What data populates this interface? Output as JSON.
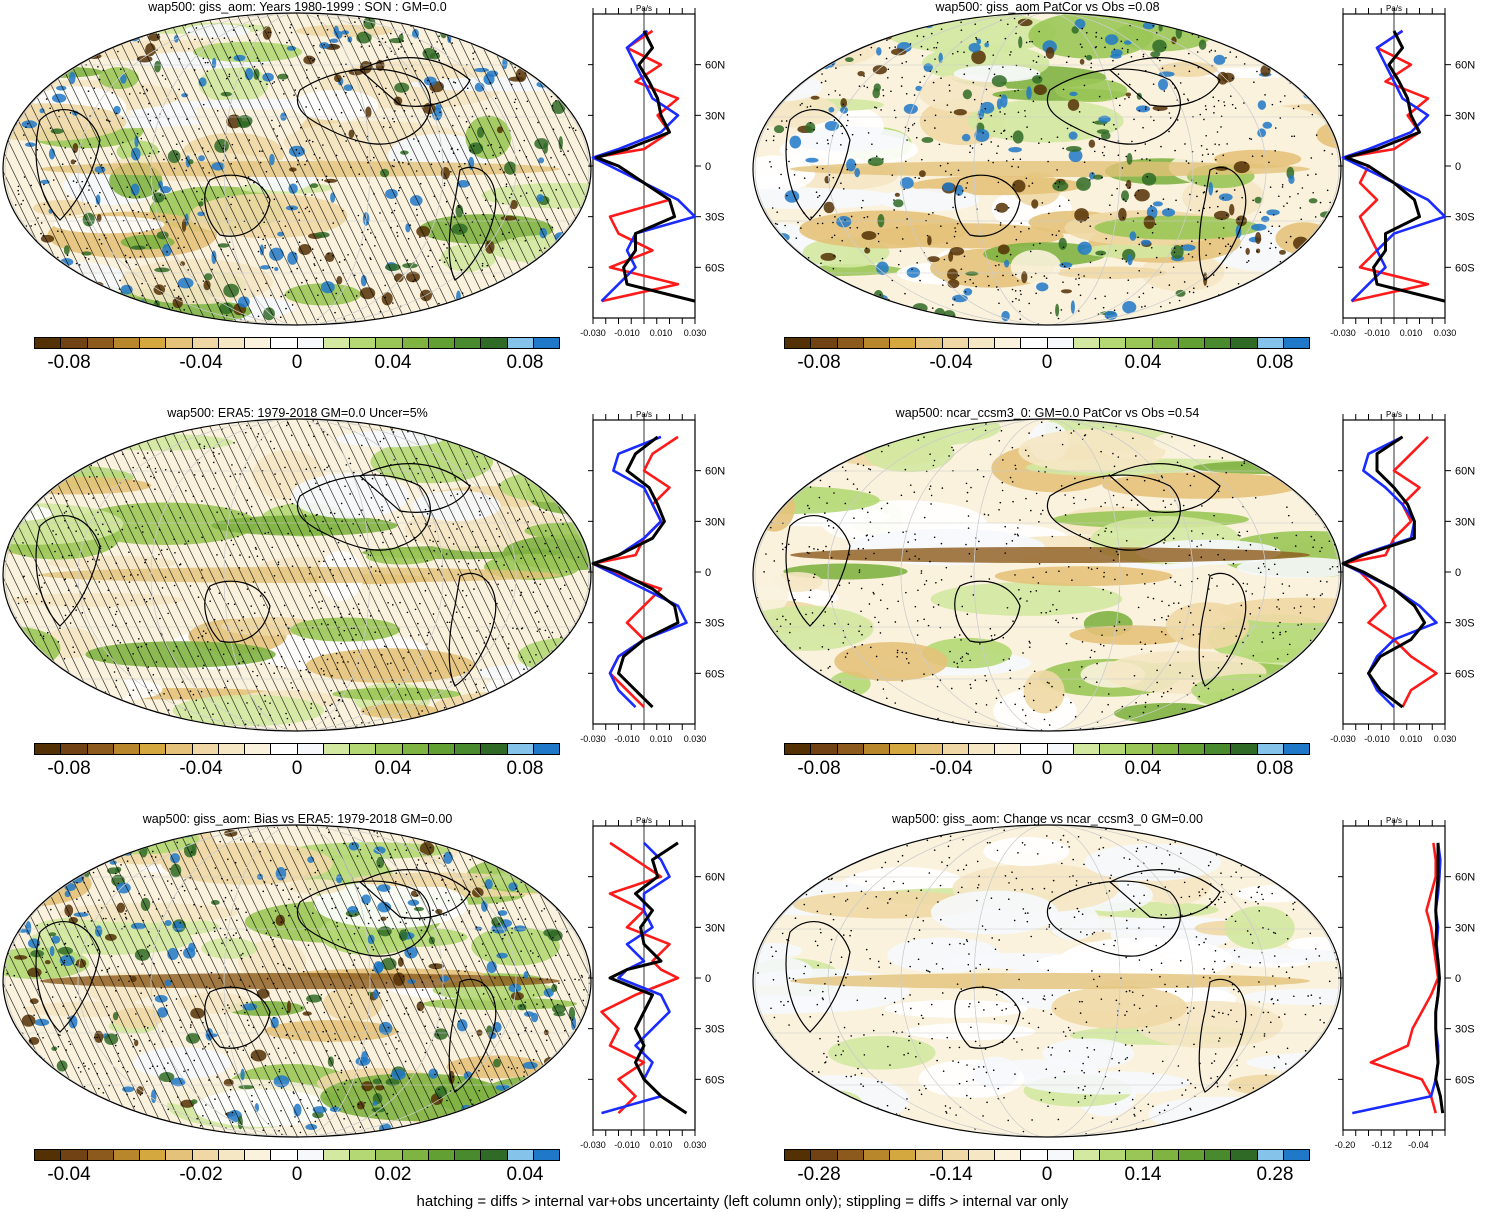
{
  "colorbar_colors": [
    "#543005",
    "#704214",
    "#8c5a1c",
    "#b8862b",
    "#d4a73f",
    "#e4c279",
    "#efd8a5",
    "#f5e7c4",
    "#faf2dd",
    "#ffffff",
    "#f6f8fc",
    "#d3e8a0",
    "#b4d874",
    "#9ac657",
    "#7fb342",
    "#63a034",
    "#4a8a2e",
    "#2f6b26",
    "#86c3ea",
    "#1f78c8"
  ],
  "series_colors": {
    "model": "#ff1a1a",
    "obs": "#1a2bff",
    "ensemble": "#000000"
  },
  "map_colors": {
    "land_line": "#000000",
    "grid": "#cccccc",
    "background": "#ffffff"
  },
  "footnote": "hatching = diffs > internal var+obs uncertainty (left column only); stippling = diffs > internal var only",
  "panels": [
    {
      "id": "p1",
      "title": "wap500: giss_aom: Years 1980-1999 : SON : GM=0.0",
      "cbar_labels": [
        "-0.08",
        "-0.04",
        "0",
        "0.04",
        "0.08"
      ],
      "prof_unit": "Pa/s",
      "prof_x_ticks": [
        "-0.030",
        "-0.010",
        "0.010",
        "0.030"
      ],
      "prof_y_ticks": [
        "60N",
        "30N",
        "0",
        "30S",
        "60S"
      ],
      "hatched": true
    },
    {
      "id": "p2",
      "title": "wap500: giss_aom PatCor vs Obs =0.08",
      "cbar_labels": [
        "-0.08",
        "-0.04",
        "0",
        "0.04",
        "0.08"
      ],
      "prof_unit": "Pa/s",
      "prof_x_ticks": [
        "-0.030",
        "-0.010",
        "0.010",
        "0.030"
      ],
      "prof_y_ticks": [
        "60N",
        "30N",
        "0",
        "30S",
        "60S"
      ],
      "hatched": false
    },
    {
      "id": "p3",
      "title": "wap500: ERA5: 1979-2018 GM=0.0 Uncer=5%",
      "cbar_labels": [
        "-0.08",
        "-0.04",
        "0",
        "0.04",
        "0.08"
      ],
      "prof_unit": "Pa/s",
      "prof_x_ticks": [
        "-0.030",
        "-0.010",
        "0.010",
        "0.030"
      ],
      "prof_y_ticks": [
        "60N",
        "30N",
        "0",
        "30S",
        "60S"
      ],
      "hatched": true
    },
    {
      "id": "p4",
      "title": "wap500: ncar_ccsm3_0: GM=0.0 PatCor vs Obs =0.54",
      "cbar_labels": [
        "-0.08",
        "-0.04",
        "0",
        "0.04",
        "0.08"
      ],
      "prof_unit": "Pa/s",
      "prof_x_ticks": [
        "-0.030",
        "-0.010",
        "0.010",
        "0.030"
      ],
      "prof_y_ticks": [
        "60N",
        "30N",
        "0",
        "30S",
        "60S"
      ],
      "hatched": false
    },
    {
      "id": "p5",
      "title": "wap500: giss_aom: Bias vs ERA5: 1979-2018  GM=0.00",
      "cbar_labels": [
        "-0.04",
        "-0.02",
        "0",
        "0.02",
        "0.04"
      ],
      "prof_unit": "Pa/s",
      "prof_x_ticks": [
        "-0.030",
        "-0.010",
        "0.010",
        "0.030"
      ],
      "prof_y_ticks": [
        "60N",
        "30N",
        "0",
        "30S",
        "60S"
      ],
      "hatched": true
    },
    {
      "id": "p6",
      "title": "wap500: giss_aom: Change vs ncar_ccsm3_0 GM=0.00",
      "cbar_labels": [
        "-0.28",
        "-0.14",
        "0",
        "0.14",
        "0.28"
      ],
      "prof_unit": "Pa/s",
      "prof_x_ticks": [
        "-0.20",
        "-0.12",
        "-0.04"
      ],
      "prof_y_ticks": [
        "60N",
        "30N",
        "0",
        "30S",
        "60S"
      ],
      "hatched": false
    }
  ],
  "chart_data": [
    {
      "type": "heatmap",
      "title": "wap500: giss_aom: Years 1980-1999 : SON : GM=0.0",
      "colorbar_range": [
        -0.1,
        0.1
      ],
      "units": "Pa/s",
      "profile": {
        "ylim": [
          -90,
          90
        ],
        "xlim": [
          -0.03,
          0.03
        ],
        "lat": [
          80,
          70,
          60,
          50,
          40,
          30,
          20,
          10,
          5,
          0,
          -10,
          -20,
          -30,
          -40,
          -50,
          -60,
          -70,
          -80
        ],
        "series": [
          {
            "color": "red",
            "values": [
              0.005,
              -0.01,
              0.01,
              -0.005,
              0.02,
              0.008,
              0.015,
              0.0,
              -0.03,
              -0.015,
              0.0,
              0.015,
              -0.02,
              -0.015,
              0.005,
              -0.02,
              0.02,
              -0.025
            ]
          },
          {
            "color": "blue",
            "values": [
              0.002,
              -0.01,
              -0.005,
              0.0,
              0.005,
              0.02,
              0.01,
              -0.015,
              -0.03,
              -0.02,
              0.0,
              0.02,
              0.03,
              -0.005,
              -0.01,
              -0.005,
              -0.015,
              -0.025
            ]
          },
          {
            "color": "black",
            "values": [
              0.0,
              0.005,
              -0.003,
              0.003,
              0.008,
              0.01,
              0.015,
              -0.01,
              -0.028,
              -0.015,
              0.0,
              0.015,
              0.018,
              -0.005,
              -0.005,
              -0.012,
              -0.01,
              0.03
            ]
          }
        ]
      }
    },
    {
      "type": "heatmap",
      "title": "wap500: giss_aom PatCor vs Obs =0.08",
      "colorbar_range": [
        -0.1,
        0.1
      ],
      "units": "Pa/s",
      "profile": {
        "ylim": [
          -90,
          90
        ],
        "xlim": [
          -0.03,
          0.03
        ],
        "lat": [
          80,
          70,
          60,
          50,
          40,
          30,
          20,
          10,
          5,
          0,
          -10,
          -20,
          -30,
          -40,
          -50,
          -60,
          -70,
          -80
        ],
        "series": [
          {
            "color": "red",
            "values": [
              0.005,
              -0.01,
              0.01,
              -0.005,
              0.02,
              0.008,
              0.015,
              0.0,
              -0.03,
              -0.015,
              -0.02,
              -0.01,
              -0.02,
              -0.015,
              -0.01,
              -0.02,
              0.02,
              -0.025
            ]
          },
          {
            "color": "blue",
            "values": [
              0.005,
              -0.01,
              -0.005,
              0.0,
              0.005,
              0.02,
              0.01,
              -0.015,
              -0.03,
              -0.02,
              0.0,
              0.02,
              0.03,
              0.0,
              -0.01,
              -0.005,
              -0.015,
              -0.025
            ]
          },
          {
            "color": "black",
            "values": [
              0.0,
              0.005,
              -0.003,
              0.003,
              0.008,
              0.01,
              0.015,
              -0.01,
              -0.028,
              -0.015,
              0.0,
              0.012,
              0.015,
              -0.005,
              -0.005,
              -0.012,
              -0.01,
              0.03
            ]
          }
        ]
      }
    },
    {
      "type": "heatmap",
      "title": "wap500: ERA5: 1979-2018 GM=0.0 Uncer=5%",
      "colorbar_range": [
        -0.1,
        0.1
      ],
      "units": "Pa/s",
      "profile": {
        "ylim": [
          -90,
          90
        ],
        "xlim": [
          -0.03,
          0.03
        ],
        "lat": [
          80,
          70,
          60,
          50,
          40,
          30,
          20,
          10,
          5,
          0,
          -10,
          -20,
          -30,
          -40,
          -50,
          -60,
          -70,
          -80
        ],
        "series": [
          {
            "color": "red",
            "values": [
              0.02,
              0.005,
              0.0,
              0.015,
              0.005,
              0.01,
              0.0,
              -0.005,
              -0.03,
              -0.02,
              0.01,
              0.0,
              -0.01,
              0.0,
              -0.015,
              -0.02,
              -0.01,
              0.0
            ]
          },
          {
            "color": "blue",
            "values": [
              0.01,
              -0.015,
              -0.018,
              0.0,
              0.005,
              0.01,
              0.0,
              -0.015,
              -0.03,
              -0.02,
              0.0,
              0.02,
              0.025,
              0.0,
              -0.015,
              -0.02,
              -0.015,
              -0.005
            ]
          },
          {
            "color": "black",
            "values": [
              0.008,
              -0.005,
              -0.01,
              0.003,
              0.008,
              0.012,
              0.005,
              -0.015,
              -0.03,
              -0.015,
              0.005,
              0.018,
              0.02,
              0.0,
              -0.012,
              -0.015,
              -0.005,
              0.005
            ]
          }
        ]
      }
    },
    {
      "type": "heatmap",
      "title": "wap500: ncar_ccsm3_0: GM=0.0 PatCor vs Obs =0.54",
      "colorbar_range": [
        -0.1,
        0.1
      ],
      "units": "Pa/s",
      "profile": {
        "ylim": [
          -90,
          90
        ],
        "xlim": [
          -0.03,
          0.03
        ],
        "lat": [
          80,
          70,
          60,
          50,
          40,
          30,
          20,
          10,
          5,
          0,
          -10,
          -20,
          -30,
          -40,
          -50,
          -60,
          -70,
          -80
        ],
        "series": [
          {
            "color": "red",
            "values": [
              0.02,
              0.01,
              0.0,
              0.015,
              0.005,
              0.01,
              0.0,
              -0.005,
              -0.03,
              -0.02,
              -0.01,
              -0.005,
              -0.015,
              0.0,
              0.01,
              0.025,
              0.01,
              0.005
            ]
          },
          {
            "color": "blue",
            "values": [
              0.005,
              -0.015,
              -0.018,
              -0.005,
              0.005,
              0.012,
              0.01,
              -0.02,
              -0.03,
              -0.02,
              0.0,
              0.015,
              0.025,
              0.0,
              -0.01,
              -0.015,
              -0.01,
              0.0
            ]
          },
          {
            "color": "black",
            "values": [
              0.005,
              -0.01,
              -0.01,
              0.0,
              0.008,
              0.012,
              0.012,
              -0.018,
              -0.03,
              -0.018,
              0.0,
              0.012,
              0.018,
              0.01,
              -0.008,
              -0.015,
              -0.008,
              0.005
            ]
          }
        ]
      }
    },
    {
      "type": "heatmap",
      "title": "wap500: giss_aom: Bias vs ERA5: 1979-2018  GM=0.00",
      "colorbar_range": [
        -0.05,
        0.05
      ],
      "units": "Pa/s",
      "profile": {
        "ylim": [
          -90,
          90
        ],
        "xlim": [
          -0.03,
          0.03
        ],
        "lat": [
          80,
          70,
          60,
          50,
          40,
          30,
          20,
          10,
          5,
          0,
          -10,
          -20,
          -30,
          -40,
          -50,
          -60,
          -70,
          -80
        ],
        "series": [
          {
            "color": "red",
            "values": [
              -0.02,
              -0.005,
              0.01,
              -0.02,
              0.0,
              -0.01,
              0.015,
              0.005,
              0.01,
              0.02,
              -0.005,
              -0.025,
              -0.015,
              -0.02,
              0.0,
              -0.015,
              -0.005,
              -0.015
            ]
          },
          {
            "color": "blue",
            "values": [
              0.0,
              0.01,
              0.015,
              0.0,
              0.0,
              0.005,
              -0.01,
              0.0,
              -0.01,
              -0.015,
              0.01,
              0.015,
              0.005,
              -0.005,
              0.005,
              0.0,
              0.01,
              -0.025
            ]
          },
          {
            "color": "black",
            "values": [
              0.02,
              0.005,
              0.008,
              -0.005,
              0.005,
              -0.002,
              0.0,
              0.01,
              -0.01,
              -0.02,
              0.005,
              0.0,
              -0.005,
              0.0,
              -0.005,
              0.0,
              0.01,
              0.025
            ]
          }
        ]
      }
    },
    {
      "type": "heatmap",
      "title": "wap500: giss_aom: Change vs ncar_ccsm3_0 GM=0.00",
      "colorbar_range": [
        -0.35,
        0.35
      ],
      "units": "Pa/s",
      "profile": {
        "ylim": [
          -90,
          90
        ],
        "xlim": [
          -0.22,
          0.0
        ],
        "lat": [
          80,
          70,
          60,
          50,
          40,
          30,
          20,
          10,
          0,
          -10,
          -20,
          -30,
          -40,
          -50,
          -60,
          -70,
          -80
        ],
        "series": [
          {
            "color": "red",
            "values": [
              -0.025,
              -0.02,
              -0.02,
              -0.03,
              -0.04,
              -0.03,
              -0.025,
              -0.02,
              -0.015,
              -0.03,
              -0.05,
              -0.07,
              -0.08,
              -0.16,
              -0.05,
              -0.03,
              -0.02
            ]
          },
          {
            "color": "blue",
            "values": [
              -0.015,
              -0.01,
              -0.012,
              -0.015,
              -0.02,
              -0.015,
              -0.018,
              -0.015,
              -0.012,
              -0.015,
              -0.02,
              -0.02,
              -0.015,
              -0.015,
              -0.02,
              -0.03,
              -0.2
            ]
          },
          {
            "color": "black",
            "values": [
              -0.015,
              -0.015,
              -0.015,
              -0.018,
              -0.02,
              -0.018,
              -0.02,
              -0.015,
              -0.012,
              -0.015,
              -0.02,
              -0.02,
              -0.018,
              -0.015,
              -0.02,
              -0.01,
              -0.005
            ]
          }
        ]
      }
    }
  ]
}
